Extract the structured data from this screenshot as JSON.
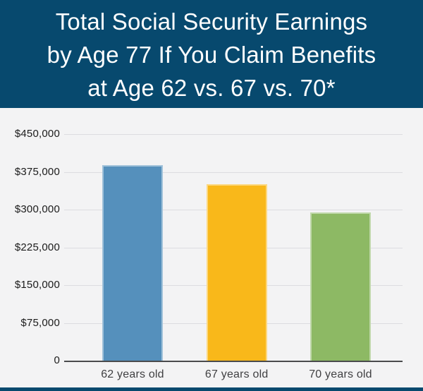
{
  "header": {
    "title_lines": [
      "Total Social Security Earnings",
      "by Age 77 If You Claim Benefits",
      "at Age 62 vs. 67 vs. 70*"
    ]
  },
  "colors": {
    "header_bg": "#07496E",
    "header_text": "#FFFFFF",
    "chart_bg": "#F3F3F4",
    "gridline": "#DCDCE0",
    "zero_axis": "#4A4B4D",
    "ytick_text": "#1B1B1B",
    "xlabel_text": "#404042",
    "accent_bar": "#07496E"
  },
  "chart_data": {
    "type": "bar",
    "title": "Total Social Security Earnings by Age 77 If You Claim Benefits at Age 62 vs. 67 vs. 70*",
    "categories": [
      "62 years old",
      "67 years old",
      "70 years old"
    ],
    "values": [
      388000,
      350000,
      294000
    ],
    "bar_colors": [
      "#5590BC",
      "#F9B81A",
      "#8DB964"
    ],
    "xlabel": "",
    "ylabel": "",
    "ylim": [
      0,
      450000
    ],
    "ytick_interval": 75000,
    "yticks": [
      {
        "value": 450000,
        "label": "$450,000"
      },
      {
        "value": 375000,
        "label": "$375,000"
      },
      {
        "value": 300000,
        "label": "$300,000"
      },
      {
        "value": 225000,
        "label": "$225,000"
      },
      {
        "value": 150000,
        "label": "$150,000"
      },
      {
        "value": 75000,
        "label": "$75,000"
      },
      {
        "value": 0,
        "label": "0"
      }
    ],
    "grid": true,
    "legend": false
  }
}
